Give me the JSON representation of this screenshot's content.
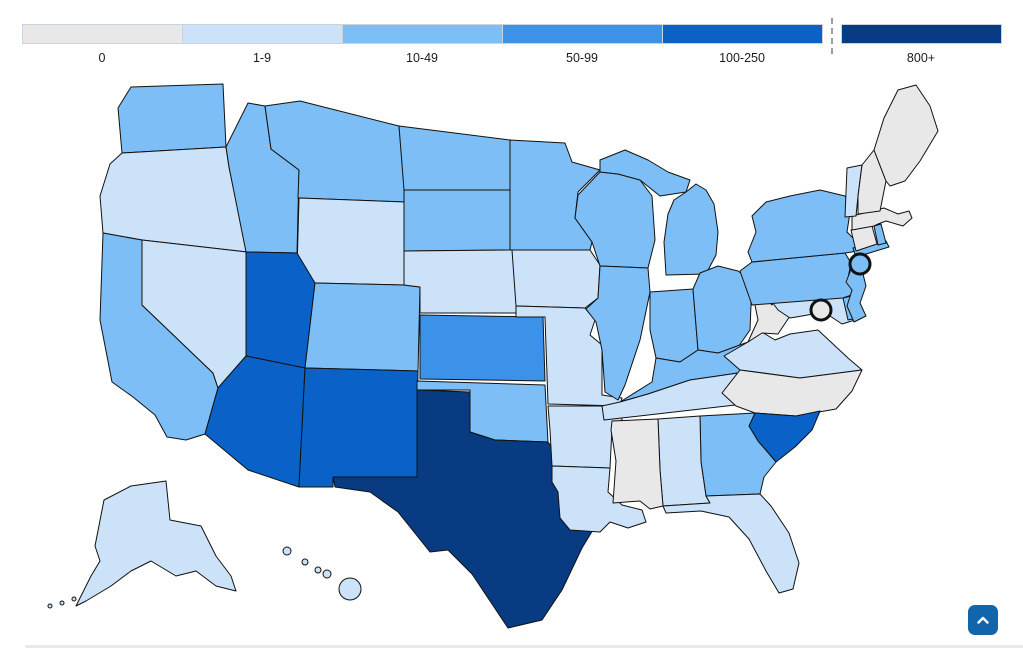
{
  "chart_data": {
    "type": "choropleth",
    "geography": "united-states",
    "legend_bins": [
      {
        "label": "0",
        "color": "#e8e8e8",
        "separator_before": false
      },
      {
        "label": "1-9",
        "color": "#cbe2f9",
        "separator_before": false
      },
      {
        "label": "10-49",
        "color": "#7cbef5",
        "separator_before": false
      },
      {
        "label": "50-99",
        "color": "#3b92e8",
        "separator_before": false
      },
      {
        "label": "100-250",
        "color": "#0a62c8",
        "separator_before": false
      },
      {
        "label": "800+",
        "color": "#083b82",
        "separator_before": true
      }
    ],
    "state_bins": {
      "WA": "10-49",
      "OR": "1-9",
      "CA": "10-49",
      "NV": "1-9",
      "ID": "10-49",
      "MT": "10-49",
      "WY": "1-9",
      "UT": "100-250",
      "CO": "10-49",
      "AZ": "100-250",
      "NM": "100-250",
      "ND": "10-49",
      "SD": "10-49",
      "NE": "1-9",
      "KS": "50-99",
      "OK": "10-49",
      "TX": "800+",
      "MN": "10-49",
      "IA": "1-9",
      "MO": "1-9",
      "AR": "1-9",
      "LA": "1-9",
      "WI": "10-49",
      "IL": "10-49",
      "MI": "10-49",
      "IN": "10-49",
      "OH": "10-49",
      "KY": "10-49",
      "TN": "1-9",
      "MS": "0",
      "AL": "1-9",
      "GA": "10-49",
      "FL": "1-9",
      "SC": "100-250",
      "NC": "0",
      "VA": "1-9",
      "WV": "0",
      "MD": "1-9",
      "DE": "10-49",
      "PA": "10-49",
      "NJ": "10-49",
      "NY": "10-49",
      "CT": "0",
      "RI": "10-49",
      "MA": "0",
      "VT": "1-9",
      "NH": "0",
      "ME": "0",
      "AK": "1-9",
      "HI": "1-9"
    },
    "markers": [
      {
        "id": "new-jersey-circle",
        "bin": "10-49"
      },
      {
        "id": "dc-circle",
        "bin": "0"
      }
    ],
    "map_stroke": "#111111",
    "legend_position": "top",
    "grid": false
  },
  "scroll_button": {
    "icon": "chevron-up",
    "color": "#1265ab"
  }
}
